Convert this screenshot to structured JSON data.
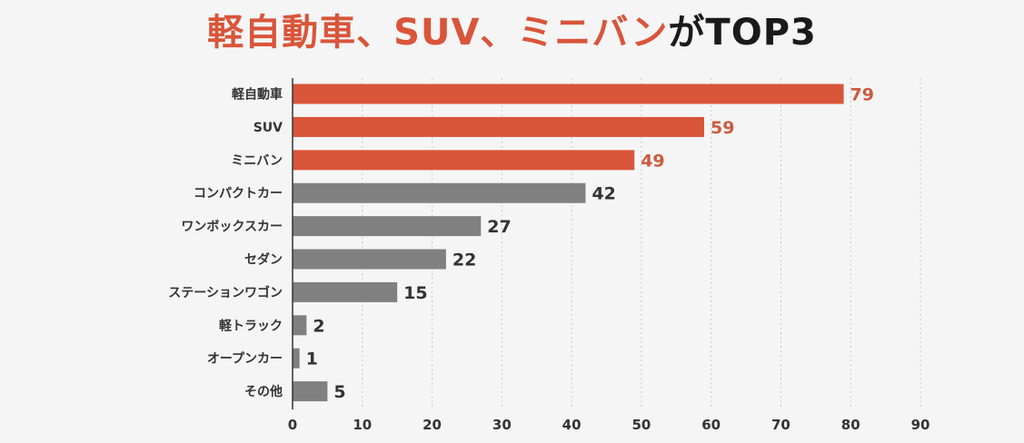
{
  "title": {
    "parts": [
      {
        "text": "軽自動車、SUV、ミニバン",
        "color": "#d9553a"
      },
      {
        "text": "がTOP3",
        "color": "#1a1a1a"
      }
    ]
  },
  "colors": {
    "highlight": "#d9553a",
    "normal": "#808080",
    "label_highlight": "#cc5a3f",
    "label_normal": "#333333",
    "grid": "#c8c8c8",
    "axis": "#333333"
  },
  "chart_data": {
    "type": "bar",
    "orientation": "horizontal",
    "title": "軽自動車、SUV、ミニバンがTOP3",
    "categories": [
      "軽自動車",
      "SUV",
      "ミニバン",
      "コンパクトカー",
      "ワンボックスカー",
      "セダン",
      "ステーションワゴン",
      "軽トラック",
      "オープンカー",
      "その他"
    ],
    "values": [
      79,
      59,
      49,
      42,
      27,
      22,
      15,
      2,
      1,
      5
    ],
    "highlighted": [
      true,
      true,
      true,
      false,
      false,
      false,
      false,
      false,
      false,
      false
    ],
    "xlim": [
      0,
      90
    ],
    "xticks": [
      0,
      10,
      20,
      30,
      40,
      50,
      60,
      70,
      80,
      90
    ],
    "xlabel": "",
    "ylabel": "",
    "grid": "vertical dashed",
    "data_labels": true
  }
}
